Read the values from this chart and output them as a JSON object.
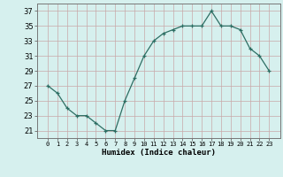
{
  "x": [
    0,
    1,
    2,
    3,
    4,
    5,
    6,
    7,
    8,
    9,
    10,
    11,
    12,
    13,
    14,
    15,
    16,
    17,
    18,
    19,
    20,
    21,
    22,
    23
  ],
  "y": [
    27,
    26,
    24,
    23,
    23,
    22,
    21,
    21,
    25,
    28,
    31,
    33,
    34,
    34.5,
    35,
    35,
    35,
    37,
    35,
    35,
    34.5,
    32,
    31,
    29
  ],
  "line_color": "#2d6e63",
  "marker": "+",
  "bg_color": "#d6f0ee",
  "grid_color": "#b8dbd8",
  "xlabel": "Humidex (Indice chaleur)",
  "ylim": [
    20,
    38
  ],
  "yticks": [
    21,
    23,
    25,
    27,
    29,
    31,
    33,
    35,
    37
  ],
  "xticks": [
    0,
    1,
    2,
    3,
    4,
    5,
    6,
    7,
    8,
    9,
    10,
    11,
    12,
    13,
    14,
    15,
    16,
    17,
    18,
    19,
    20,
    21,
    22,
    23
  ],
  "xtick_labels": [
    "0",
    "1",
    "2",
    "3",
    "4",
    "5",
    "6",
    "7",
    "8",
    "9",
    "10",
    "11",
    "12",
    "13",
    "14",
    "15",
    "16",
    "17",
    "18",
    "19",
    "20",
    "21",
    "22",
    "23"
  ]
}
